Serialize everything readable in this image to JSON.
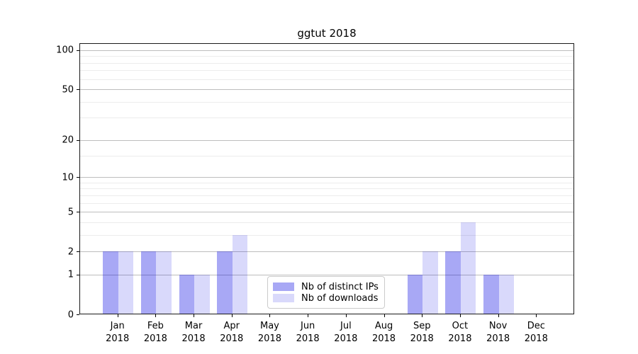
{
  "chart_data": {
    "type": "bar",
    "title": "ggtut 2018",
    "categories": [
      "Jan 2018",
      "Feb 2018",
      "Mar 2018",
      "Apr 2018",
      "May 2018",
      "Jun 2018",
      "Jul 2018",
      "Aug 2018",
      "Sep 2018",
      "Oct 2018",
      "Nov 2018",
      "Dec 2018"
    ],
    "series": [
      {
        "name": "Nb of distinct IPs",
        "color": "rgba(0,0,225,0.34)",
        "values": [
          2,
          2,
          1,
          2,
          0,
          0,
          0,
          0,
          1,
          2,
          1,
          0
        ]
      },
      {
        "name": "Nb of downloads",
        "color": "rgba(0,0,225,0.15)",
        "values": [
          2,
          2,
          1,
          3,
          0,
          0,
          0,
          0,
          2,
          4,
          1,
          0
        ]
      }
    ],
    "xlabel": "",
    "ylabel": "",
    "yscale": "log1p",
    "ylim": [
      0,
      113
    ],
    "y_major_ticks": [
      0,
      1,
      2,
      5,
      10,
      20,
      50,
      100
    ],
    "y_minor_gridlines": [
      3,
      4,
      6,
      7,
      8,
      9,
      15,
      30,
      40,
      60,
      70,
      80,
      90
    ],
    "grid": "horizontal major+minor",
    "legend_position": "lower center"
  },
  "colors": {
    "bar_distinct_ips_rendered": "#acacf4",
    "bar_downloads_rendered": "#dcdcf8",
    "grid_major": "#bdbdbd",
    "grid_minor": "#ececec",
    "axis_frame": "#1a1a1a",
    "background": "#ffffff"
  }
}
